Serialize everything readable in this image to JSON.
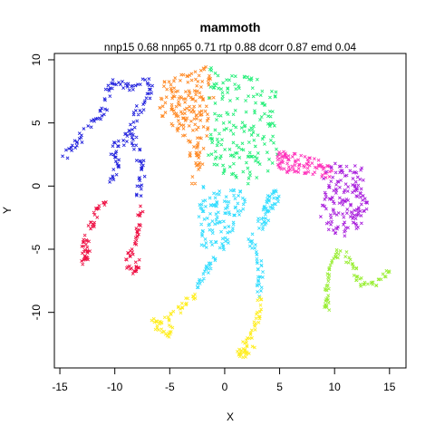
{
  "chart_data": {
    "type": "scatter",
    "title": "mammoth",
    "subtitle": "nnp15 0.68 nnp65 0.71 rtp 0.88 dcorr 0.87 emd 0.04",
    "xlabel": "X",
    "ylabel": "Y",
    "xlim": [
      -15.5,
      16.5
    ],
    "ylim": [
      -14.4,
      10.5
    ],
    "x_ticks": [
      -15,
      -10,
      -5,
      0,
      5,
      10,
      15
    ],
    "y_ticks": [
      -10,
      -5,
      0,
      5,
      10
    ],
    "x_tick_labels": [
      "-15",
      "-10",
      "-5",
      "0",
      "5",
      "10",
      "15"
    ],
    "y_tick_labels": [
      "-10",
      "-5",
      "0",
      "5",
      "10"
    ],
    "grid": false,
    "legend": "none",
    "marker": "x",
    "series": [
      {
        "color": "#2222dd",
        "shape": "polyline",
        "spread": 0.3,
        "density": 6,
        "points": [
          [
            -14.5,
            2.3
          ],
          [
            -12.5,
            4.5
          ],
          [
            -10.8,
            6.3
          ],
          [
            -10.5,
            8.0
          ],
          [
            -9.5,
            8.3
          ],
          [
            -8.5,
            7.8
          ],
          [
            -7.5,
            8.5
          ],
          [
            -6.5,
            7.8
          ],
          [
            -7.2,
            6.8
          ],
          [
            -8.0,
            5.8
          ],
          [
            -8.5,
            4.5
          ],
          [
            -9.3,
            3.5
          ],
          [
            -10.3,
            3.2
          ],
          [
            -9.8,
            1.8
          ],
          [
            -10.2,
            0.0
          ]
        ]
      },
      {
        "color": "#2222dd",
        "shape": "polyline",
        "spread": 0.3,
        "density": 6,
        "points": [
          [
            -8.5,
            4.5
          ],
          [
            -8.0,
            3.0
          ],
          [
            -7.5,
            1.5
          ],
          [
            -7.6,
            0.5
          ],
          [
            -7.8,
            -0.8
          ]
        ]
      },
      {
        "color": "#ee1144",
        "shape": "polyline",
        "spread": 0.25,
        "density": 7,
        "points": [
          [
            -10.8,
            -1.0
          ],
          [
            -11.6,
            -2.0
          ],
          [
            -12.3,
            -3.5
          ],
          [
            -12.8,
            -4.6
          ],
          [
            -13.0,
            -6.0
          ],
          [
            -12.3,
            -5.8
          ],
          [
            -12.6,
            -4.8
          ]
        ]
      },
      {
        "color": "#ee1144",
        "shape": "polyline",
        "spread": 0.25,
        "density": 7,
        "points": [
          [
            -7.6,
            -1.8
          ],
          [
            -7.9,
            -3.5
          ],
          [
            -8.4,
            -4.8
          ],
          [
            -8.9,
            -6.3
          ],
          [
            -8.1,
            -6.8
          ],
          [
            -7.9,
            -5.5
          ]
        ]
      },
      {
        "color": "#ff8822",
        "shape": "polygon",
        "density": 180,
        "points": [
          [
            -5.5,
            8.5
          ],
          [
            -3.5,
            9.0
          ],
          [
            -1.5,
            9.5
          ],
          [
            -1.0,
            7.0
          ],
          [
            -1.5,
            4.0
          ],
          [
            -1.8,
            2.0
          ],
          [
            -2.5,
            0.5
          ],
          [
            -3.0,
            -0.5
          ],
          [
            -3.0,
            1.5
          ],
          [
            -3.5,
            3.5
          ],
          [
            -5.0,
            5.0
          ],
          [
            -6.0,
            5.5
          ],
          [
            -5.8,
            7.2
          ]
        ]
      },
      {
        "color": "#22ee77",
        "shape": "polygon",
        "density": 180,
        "points": [
          [
            -1.5,
            9.5
          ],
          [
            1.5,
            9.2
          ],
          [
            4.5,
            8.0
          ],
          [
            5.0,
            6.5
          ],
          [
            4.5,
            4.5
          ],
          [
            4.8,
            2.5
          ],
          [
            4.0,
            1.0
          ],
          [
            2.5,
            0.0
          ],
          [
            0.5,
            0.5
          ],
          [
            -1.0,
            1.0
          ],
          [
            -1.8,
            3.0
          ],
          [
            -1.5,
            6.0
          ]
        ]
      },
      {
        "color": "#33ddff",
        "shape": "polygon",
        "density": 110,
        "points": [
          [
            -2.0,
            0.0
          ],
          [
            0.0,
            -0.5
          ],
          [
            1.5,
            0.0
          ],
          [
            2.0,
            -1.5
          ],
          [
            1.0,
            -3.0
          ],
          [
            0.5,
            -4.5
          ],
          [
            -0.5,
            -5.5
          ],
          [
            -2.0,
            -5.0
          ],
          [
            -2.5,
            -3.5
          ],
          [
            -2.3,
            -1.5
          ]
        ]
      },
      {
        "color": "#33ddff",
        "shape": "polygon",
        "density": 50,
        "points": [
          [
            4.8,
            -0.2
          ],
          [
            3.5,
            -1.0
          ],
          [
            3.0,
            -2.5
          ],
          [
            3.0,
            -4.0
          ],
          [
            4.2,
            -2.5
          ],
          [
            5.0,
            -1.0
          ]
        ]
      },
      {
        "color": "#33ddff",
        "shape": "polyline",
        "spread": 0.25,
        "density": 7,
        "points": [
          [
            2.3,
            -4.0
          ],
          [
            3.0,
            -5.5
          ],
          [
            3.3,
            -6.7
          ],
          [
            3.1,
            -7.7
          ],
          [
            3.2,
            -8.7
          ]
        ]
      },
      {
        "color": "#33ddff",
        "shape": "polyline",
        "spread": 0.25,
        "density": 7,
        "points": [
          [
            -0.8,
            -5.5
          ],
          [
            -1.4,
            -6.5
          ],
          [
            -2.0,
            -7.5
          ],
          [
            -2.6,
            -8.5
          ]
        ]
      },
      {
        "color": "#ffee22",
        "shape": "polyline",
        "spread": 0.25,
        "density": 7,
        "points": [
          [
            -2.6,
            -8.5
          ],
          [
            -3.8,
            -9.5
          ],
          [
            -5.0,
            -10.5
          ],
          [
            -6.5,
            -10.8
          ],
          [
            -6.0,
            -11.3
          ],
          [
            -5.0,
            -11.8
          ],
          [
            -4.8,
            -11.0
          ]
        ]
      },
      {
        "color": "#ffee22",
        "shape": "polyline",
        "spread": 0.25,
        "density": 7,
        "points": [
          [
            3.2,
            -9.0
          ],
          [
            3.0,
            -10.5
          ],
          [
            2.5,
            -11.5
          ],
          [
            1.6,
            -12.6
          ],
          [
            2.2,
            -13.5
          ],
          [
            1.2,
            -13.2
          ],
          [
            2.6,
            -12.6
          ]
        ]
      },
      {
        "color": "#ff33bb",
        "shape": "polygon",
        "density": 90,
        "points": [
          [
            5.0,
            2.8
          ],
          [
            7.0,
            2.5
          ],
          [
            9.0,
            2.0
          ],
          [
            10.0,
            1.5
          ],
          [
            9.5,
            0.5
          ],
          [
            8.0,
            0.8
          ],
          [
            6.5,
            1.0
          ],
          [
            5.5,
            1.0
          ],
          [
            4.5,
            1.5
          ]
        ]
      },
      {
        "color": "#aa22dd",
        "shape": "polygon",
        "density": 150,
        "points": [
          [
            8.5,
            1.8
          ],
          [
            10.0,
            1.8
          ],
          [
            11.5,
            1.8
          ],
          [
            12.5,
            1.5
          ],
          [
            12.8,
            -0.5
          ],
          [
            13.2,
            -2.3
          ],
          [
            12.0,
            -3.5
          ],
          [
            10.5,
            -4.2
          ],
          [
            8.8,
            -3.0
          ],
          [
            8.6,
            -1.5
          ],
          [
            9.2,
            0.0
          ]
        ]
      },
      {
        "color": "#99ee33",
        "shape": "polyline",
        "spread": 0.25,
        "density": 7,
        "points": [
          [
            10.5,
            -4.8
          ],
          [
            10.0,
            -5.8
          ],
          [
            9.5,
            -7.0
          ],
          [
            9.2,
            -8.5
          ],
          [
            9.3,
            -10.0
          ]
        ]
      },
      {
        "color": "#99ee33",
        "shape": "polyline",
        "spread": 0.25,
        "density": 7,
        "points": [
          [
            10.8,
            -5.2
          ],
          [
            11.8,
            -6.5
          ],
          [
            12.5,
            -7.8
          ],
          [
            13.8,
            -7.8
          ],
          [
            15.0,
            -6.8
          ]
        ]
      }
    ]
  }
}
